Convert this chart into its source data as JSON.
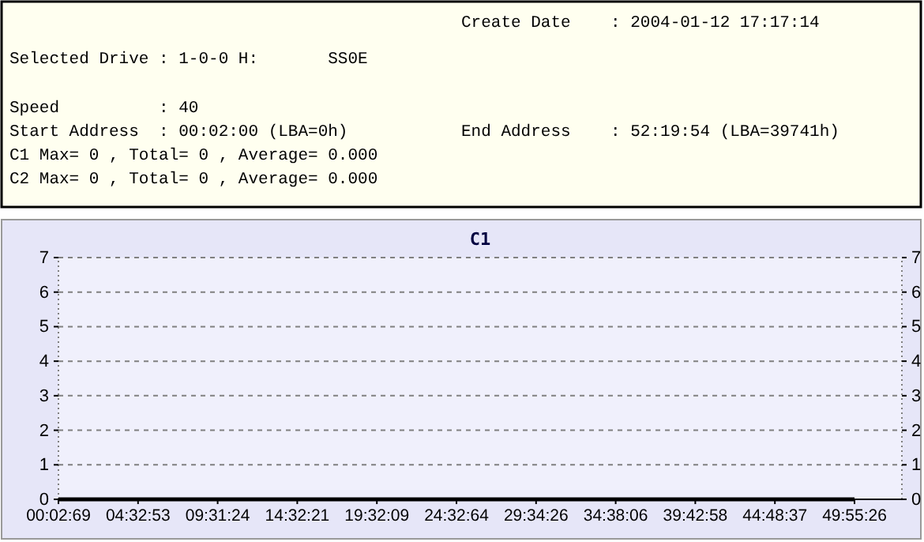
{
  "chart_data": {
    "type": "line",
    "title": "C1",
    "annotations": [
      "Create Date    : 2004-01-12 17:17:14",
      "Selected Drive : 1-0-0 H:       SS0E",
      "Speed          : 40",
      "Start Address  : 00:02:00 (LBA=0h)",
      "End Address    : 52:19:54 (LBA=39741h)",
      "C1 Max= 0 , Total= 0 , Average= 0.000",
      "C2 Max= 0 , Total= 0 , Average= 0.000"
    ],
    "categories": [
      "00:02:69",
      "04:32:53",
      "09:31:24",
      "14:32:21",
      "19:32:09",
      "24:32:64",
      "29:34:26",
      "34:38:06",
      "39:42:58",
      "44:48:37",
      "49:55:26"
    ],
    "series": [
      {
        "color": "#000000",
        "values": [
          0,
          0,
          0,
          0,
          0,
          0,
          0,
          0,
          0,
          0,
          0
        ]
      }
    ],
    "ylim": [
      0,
      7
    ],
    "yticks": [
      0,
      1,
      2,
      3,
      4,
      5,
      6,
      7
    ],
    "y2lim": [
      0,
      7
    ],
    "y2ticks": [
      0,
      1,
      2,
      3,
      4,
      5,
      6,
      7
    ],
    "grid": "y"
  }
}
